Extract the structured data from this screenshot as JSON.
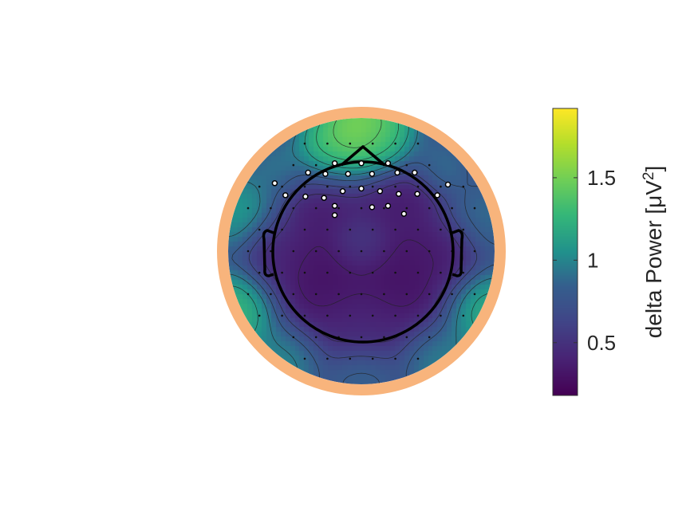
{
  "chart_data": {
    "type": "heatmap",
    "subtype": "eeg-topoplot",
    "title": "",
    "colormap": "viridis",
    "colorbar": {
      "label_main": "delta Power [μV",
      "label_sup": "2",
      "label_end": "]",
      "min": 0.18,
      "max": 1.92,
      "ticks": [
        {
          "value": 0.5,
          "label": "0.5"
        },
        {
          "value": 1.0,
          "label": "1"
        },
        {
          "value": 1.5,
          "label": "1.5"
        }
      ],
      "placement": "right"
    },
    "colors": {
      "ring": "#f8b47c",
      "head_outline": "#000000",
      "contour": "#222222",
      "electrode_dot": "#111111",
      "highlight_fill": "#ffffff",
      "highlight_stroke": "#000000"
    },
    "value_field_sources": [
      {
        "x": 0.0,
        "y": 0.92,
        "v": 1.85,
        "s": 0.2
      },
      {
        "x": -0.25,
        "y": 0.72,
        "v": 1.55,
        "s": 0.15
      },
      {
        "x": 0.18,
        "y": 0.8,
        "v": 1.35,
        "s": 0.14
      },
      {
        "x": 0.5,
        "y": 0.72,
        "v": 0.9,
        "s": 0.12
      },
      {
        "x": -0.6,
        "y": 0.62,
        "v": 1.05,
        "s": 0.14
      },
      {
        "x": 0.62,
        "y": 0.62,
        "v": 1.0,
        "s": 0.12
      },
      {
        "x": -0.93,
        "y": 0.3,
        "v": 1.25,
        "s": 0.18
      },
      {
        "x": -0.93,
        "y": -0.45,
        "v": 1.5,
        "s": 0.18
      },
      {
        "x": 0.93,
        "y": -0.45,
        "v": 1.4,
        "s": 0.18
      },
      {
        "x": 0.93,
        "y": 0.25,
        "v": 1.0,
        "s": 0.18
      },
      {
        "x": -0.6,
        "y": -0.85,
        "v": 1.15,
        "s": 0.18
      },
      {
        "x": 0.6,
        "y": -0.85,
        "v": 1.1,
        "s": 0.18
      },
      {
        "x": 0.0,
        "y": -0.97,
        "v": 0.95,
        "s": 0.15
      },
      {
        "x": -0.3,
        "y": -0.22,
        "v": 0.22,
        "s": 0.25
      },
      {
        "x": 0.3,
        "y": -0.22,
        "v": 0.22,
        "s": 0.25
      },
      {
        "x": 0.0,
        "y": 0.05,
        "v": 0.62,
        "s": 0.12
      },
      {
        "x": 0.0,
        "y": -0.55,
        "v": 0.45,
        "s": 0.18
      },
      {
        "x": 0.3,
        "y": 0.42,
        "v": 0.3,
        "s": 0.18
      },
      {
        "x": -0.3,
        "y": 0.42,
        "v": 0.3,
        "s": 0.18
      },
      {
        "x": 0.62,
        "y": 0.0,
        "v": 0.32,
        "s": 0.15
      },
      {
        "x": -0.62,
        "y": 0.0,
        "v": 0.4,
        "s": 0.15
      }
    ],
    "highlighted_electrodes": [
      {
        "x": -0.2,
        "y": 0.66
      },
      {
        "x": 0.0,
        "y": 0.66
      },
      {
        "x": 0.2,
        "y": 0.66
      },
      {
        "x": -0.4,
        "y": 0.59
      },
      {
        "x": -0.27,
        "y": 0.58
      },
      {
        "x": -0.1,
        "y": 0.58
      },
      {
        "x": 0.08,
        "y": 0.58
      },
      {
        "x": 0.27,
        "y": 0.59
      },
      {
        "x": 0.4,
        "y": 0.59
      },
      {
        "x": -0.65,
        "y": 0.51
      },
      {
        "x": -0.57,
        "y": 0.42
      },
      {
        "x": -0.42,
        "y": 0.41
      },
      {
        "x": -0.28,
        "y": 0.4
      },
      {
        "x": -0.14,
        "y": 0.45
      },
      {
        "x": 0.0,
        "y": 0.47
      },
      {
        "x": 0.14,
        "y": 0.45
      },
      {
        "x": 0.28,
        "y": 0.43
      },
      {
        "x": 0.42,
        "y": 0.43
      },
      {
        "x": 0.57,
        "y": 0.42
      },
      {
        "x": 0.65,
        "y": 0.5
      },
      {
        "x": -0.2,
        "y": 0.34
      },
      {
        "x": 0.08,
        "y": 0.33
      },
      {
        "x": 0.2,
        "y": 0.34
      },
      {
        "x": -0.2,
        "y": 0.27
      },
      {
        "x": 0.32,
        "y": 0.28
      }
    ]
  }
}
